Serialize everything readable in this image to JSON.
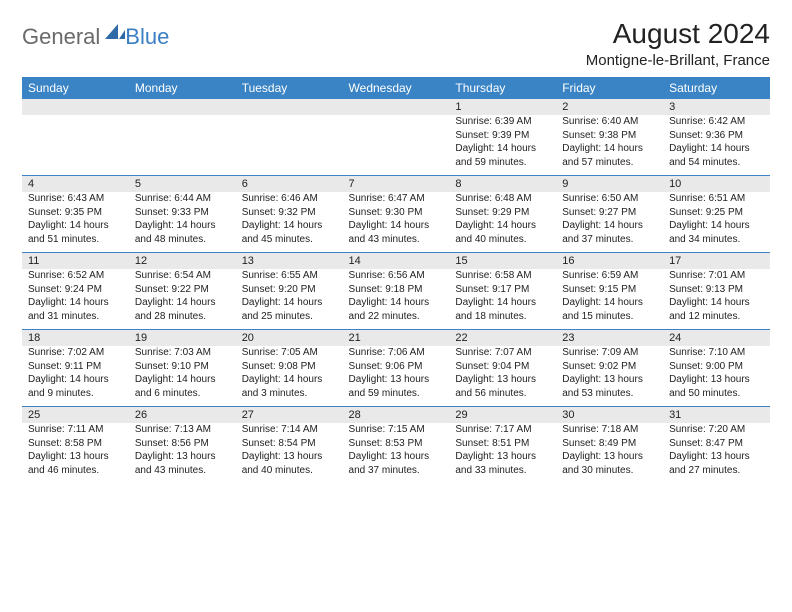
{
  "brand": {
    "part1": "General",
    "part2": "Blue"
  },
  "title": "August 2024",
  "location": "Montigne-le-Brillant, France",
  "colors": {
    "header_bg": "#3a84c6",
    "header_text": "#ffffff",
    "daynum_bg": "#e9e9ea",
    "border": "#3a84c6",
    "body_text": "#222222",
    "logo_gray": "#6a6a6a",
    "logo_blue": "#3a7fc4"
  },
  "day_headers": [
    "Sunday",
    "Monday",
    "Tuesday",
    "Wednesday",
    "Thursday",
    "Friday",
    "Saturday"
  ],
  "weeks": [
    {
      "nums": [
        "",
        "",
        "",
        "",
        "1",
        "2",
        "3"
      ],
      "cells": [
        null,
        null,
        null,
        null,
        {
          "sunrise": "Sunrise: 6:39 AM",
          "sunset": "Sunset: 9:39 PM",
          "day1": "Daylight: 14 hours",
          "day2": "and 59 minutes."
        },
        {
          "sunrise": "Sunrise: 6:40 AM",
          "sunset": "Sunset: 9:38 PM",
          "day1": "Daylight: 14 hours",
          "day2": "and 57 minutes."
        },
        {
          "sunrise": "Sunrise: 6:42 AM",
          "sunset": "Sunset: 9:36 PM",
          "day1": "Daylight: 14 hours",
          "day2": "and 54 minutes."
        }
      ]
    },
    {
      "nums": [
        "4",
        "5",
        "6",
        "7",
        "8",
        "9",
        "10"
      ],
      "cells": [
        {
          "sunrise": "Sunrise: 6:43 AM",
          "sunset": "Sunset: 9:35 PM",
          "day1": "Daylight: 14 hours",
          "day2": "and 51 minutes."
        },
        {
          "sunrise": "Sunrise: 6:44 AM",
          "sunset": "Sunset: 9:33 PM",
          "day1": "Daylight: 14 hours",
          "day2": "and 48 minutes."
        },
        {
          "sunrise": "Sunrise: 6:46 AM",
          "sunset": "Sunset: 9:32 PM",
          "day1": "Daylight: 14 hours",
          "day2": "and 45 minutes."
        },
        {
          "sunrise": "Sunrise: 6:47 AM",
          "sunset": "Sunset: 9:30 PM",
          "day1": "Daylight: 14 hours",
          "day2": "and 43 minutes."
        },
        {
          "sunrise": "Sunrise: 6:48 AM",
          "sunset": "Sunset: 9:29 PM",
          "day1": "Daylight: 14 hours",
          "day2": "and 40 minutes."
        },
        {
          "sunrise": "Sunrise: 6:50 AM",
          "sunset": "Sunset: 9:27 PM",
          "day1": "Daylight: 14 hours",
          "day2": "and 37 minutes."
        },
        {
          "sunrise": "Sunrise: 6:51 AM",
          "sunset": "Sunset: 9:25 PM",
          "day1": "Daylight: 14 hours",
          "day2": "and 34 minutes."
        }
      ]
    },
    {
      "nums": [
        "11",
        "12",
        "13",
        "14",
        "15",
        "16",
        "17"
      ],
      "cells": [
        {
          "sunrise": "Sunrise: 6:52 AM",
          "sunset": "Sunset: 9:24 PM",
          "day1": "Daylight: 14 hours",
          "day2": "and 31 minutes."
        },
        {
          "sunrise": "Sunrise: 6:54 AM",
          "sunset": "Sunset: 9:22 PM",
          "day1": "Daylight: 14 hours",
          "day2": "and 28 minutes."
        },
        {
          "sunrise": "Sunrise: 6:55 AM",
          "sunset": "Sunset: 9:20 PM",
          "day1": "Daylight: 14 hours",
          "day2": "and 25 minutes."
        },
        {
          "sunrise": "Sunrise: 6:56 AM",
          "sunset": "Sunset: 9:18 PM",
          "day1": "Daylight: 14 hours",
          "day2": "and 22 minutes."
        },
        {
          "sunrise": "Sunrise: 6:58 AM",
          "sunset": "Sunset: 9:17 PM",
          "day1": "Daylight: 14 hours",
          "day2": "and 18 minutes."
        },
        {
          "sunrise": "Sunrise: 6:59 AM",
          "sunset": "Sunset: 9:15 PM",
          "day1": "Daylight: 14 hours",
          "day2": "and 15 minutes."
        },
        {
          "sunrise": "Sunrise: 7:01 AM",
          "sunset": "Sunset: 9:13 PM",
          "day1": "Daylight: 14 hours",
          "day2": "and 12 minutes."
        }
      ]
    },
    {
      "nums": [
        "18",
        "19",
        "20",
        "21",
        "22",
        "23",
        "24"
      ],
      "cells": [
        {
          "sunrise": "Sunrise: 7:02 AM",
          "sunset": "Sunset: 9:11 PM",
          "day1": "Daylight: 14 hours",
          "day2": "and 9 minutes."
        },
        {
          "sunrise": "Sunrise: 7:03 AM",
          "sunset": "Sunset: 9:10 PM",
          "day1": "Daylight: 14 hours",
          "day2": "and 6 minutes."
        },
        {
          "sunrise": "Sunrise: 7:05 AM",
          "sunset": "Sunset: 9:08 PM",
          "day1": "Daylight: 14 hours",
          "day2": "and 3 minutes."
        },
        {
          "sunrise": "Sunrise: 7:06 AM",
          "sunset": "Sunset: 9:06 PM",
          "day1": "Daylight: 13 hours",
          "day2": "and 59 minutes."
        },
        {
          "sunrise": "Sunrise: 7:07 AM",
          "sunset": "Sunset: 9:04 PM",
          "day1": "Daylight: 13 hours",
          "day2": "and 56 minutes."
        },
        {
          "sunrise": "Sunrise: 7:09 AM",
          "sunset": "Sunset: 9:02 PM",
          "day1": "Daylight: 13 hours",
          "day2": "and 53 minutes."
        },
        {
          "sunrise": "Sunrise: 7:10 AM",
          "sunset": "Sunset: 9:00 PM",
          "day1": "Daylight: 13 hours",
          "day2": "and 50 minutes."
        }
      ]
    },
    {
      "nums": [
        "25",
        "26",
        "27",
        "28",
        "29",
        "30",
        "31"
      ],
      "cells": [
        {
          "sunrise": "Sunrise: 7:11 AM",
          "sunset": "Sunset: 8:58 PM",
          "day1": "Daylight: 13 hours",
          "day2": "and 46 minutes."
        },
        {
          "sunrise": "Sunrise: 7:13 AM",
          "sunset": "Sunset: 8:56 PM",
          "day1": "Daylight: 13 hours",
          "day2": "and 43 minutes."
        },
        {
          "sunrise": "Sunrise: 7:14 AM",
          "sunset": "Sunset: 8:54 PM",
          "day1": "Daylight: 13 hours",
          "day2": "and 40 minutes."
        },
        {
          "sunrise": "Sunrise: 7:15 AM",
          "sunset": "Sunset: 8:53 PM",
          "day1": "Daylight: 13 hours",
          "day2": "and 37 minutes."
        },
        {
          "sunrise": "Sunrise: 7:17 AM",
          "sunset": "Sunset: 8:51 PM",
          "day1": "Daylight: 13 hours",
          "day2": "and 33 minutes."
        },
        {
          "sunrise": "Sunrise: 7:18 AM",
          "sunset": "Sunset: 8:49 PM",
          "day1": "Daylight: 13 hours",
          "day2": "and 30 minutes."
        },
        {
          "sunrise": "Sunrise: 7:20 AM",
          "sunset": "Sunset: 8:47 PM",
          "day1": "Daylight: 13 hours",
          "day2": "and 27 minutes."
        }
      ]
    }
  ]
}
